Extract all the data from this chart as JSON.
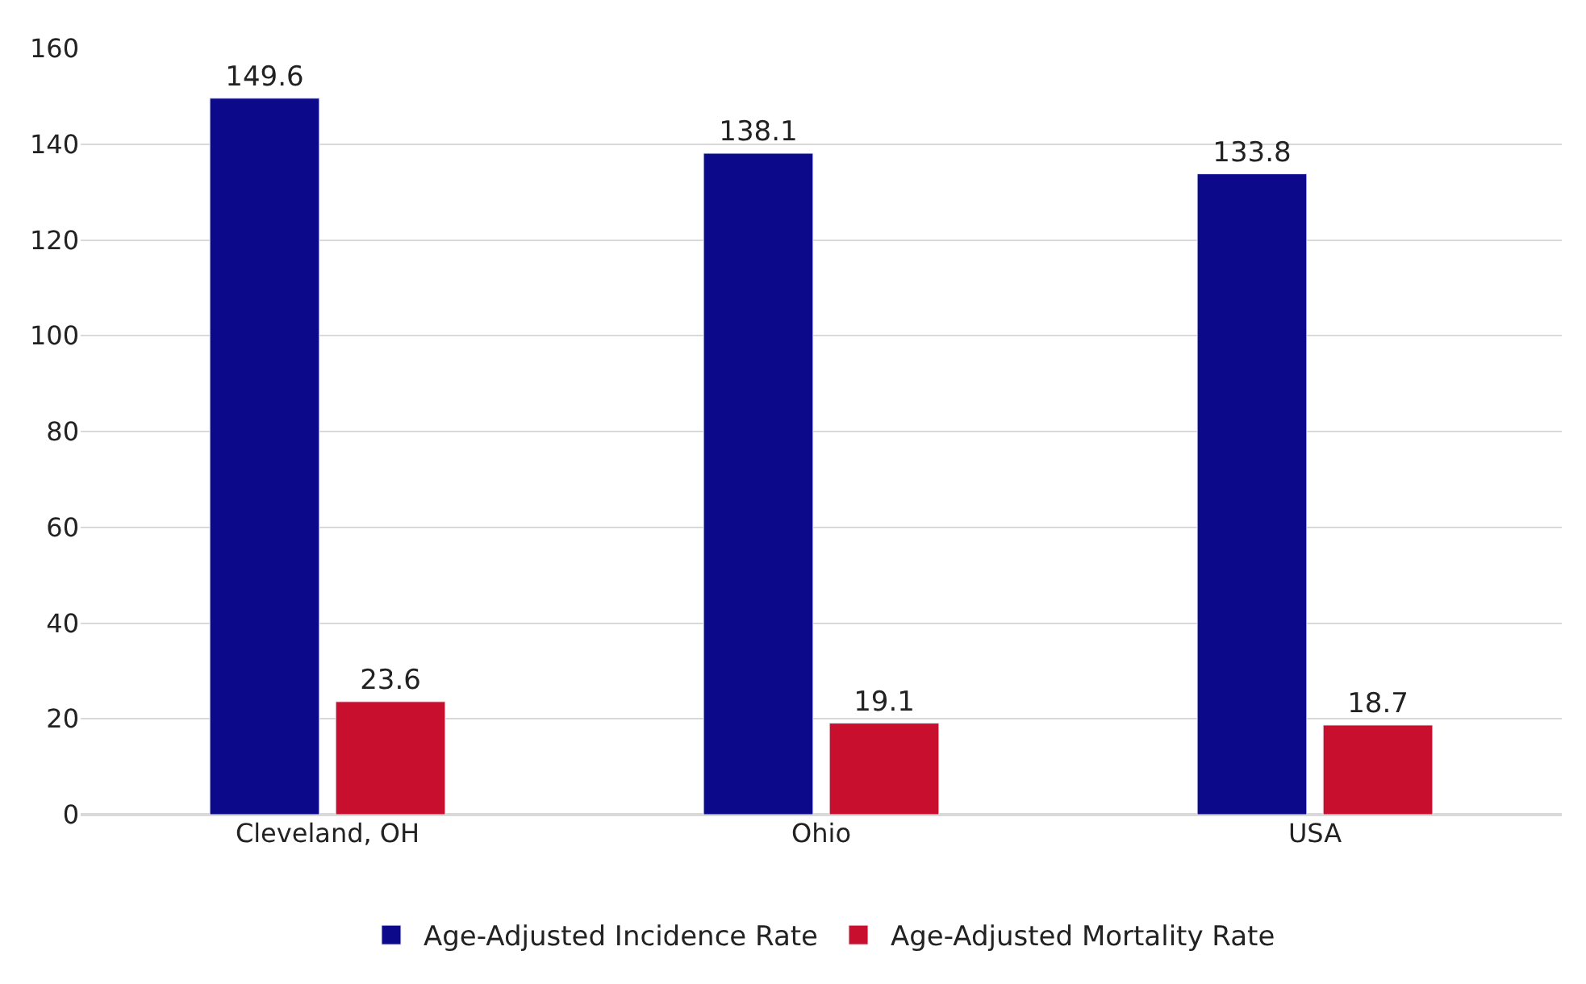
{
  "chart_data": {
    "type": "bar",
    "categories": [
      "Cleveland, OH",
      "Ohio",
      "USA"
    ],
    "series": [
      {
        "name": "Age-Adjusted Incidence Rate",
        "color": "#0c0a8a",
        "values": [
          149.6,
          138.1,
          133.8
        ]
      },
      {
        "name": "Age-Adjusted Mortality Rate",
        "color": "#c8102e",
        "values": [
          23.6,
          19.1,
          18.7
        ]
      }
    ],
    "ylim": [
      0,
      160
    ],
    "yticks": [
      0,
      20,
      40,
      60,
      80,
      100,
      120,
      140,
      160
    ],
    "grid": "y",
    "legend": "bottom",
    "data_labels": true
  }
}
